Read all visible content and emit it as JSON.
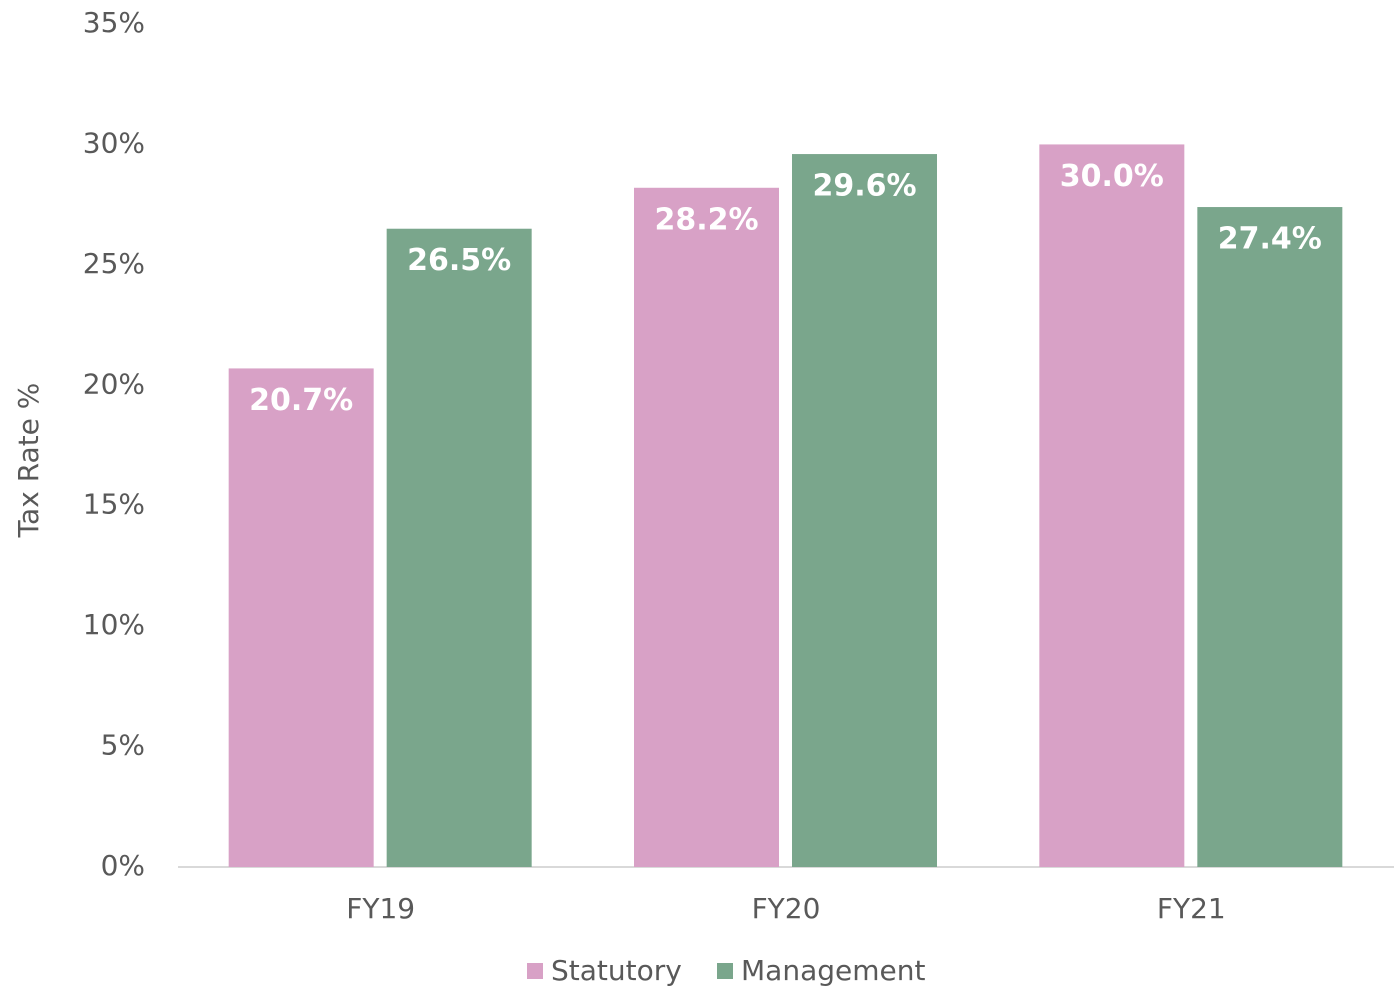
{
  "chart_data": {
    "type": "bar",
    "y_label": "Tax Rate %",
    "categories": [
      "FY19",
      "FY20",
      "FY21"
    ],
    "series": [
      {
        "name": "Statutory",
        "color": "#d8a1c6",
        "values": [
          20.7,
          28.2,
          30.0
        ],
        "value_labels": [
          "20.7%",
          "28.2%",
          "30.0%"
        ]
      },
      {
        "name": "Management",
        "color": "#7aa68c",
        "values": [
          26.5,
          29.6,
          27.4
        ],
        "value_labels": [
          "26.5%",
          "29.6%",
          "27.4%"
        ]
      }
    ],
    "ylim": [
      0,
      35
    ],
    "yticks": [
      {
        "value": 0,
        "label": "0%"
      },
      {
        "value": 5,
        "label": "5%"
      },
      {
        "value": 10,
        "label": "10%"
      },
      {
        "value": 15,
        "label": "15%"
      },
      {
        "value": 20,
        "label": "20%"
      },
      {
        "value": 25,
        "label": "25%"
      },
      {
        "value": 30,
        "label": "30%"
      },
      {
        "value": 35,
        "label": "35%"
      }
    ],
    "grid": false,
    "legend": "bottom"
  }
}
